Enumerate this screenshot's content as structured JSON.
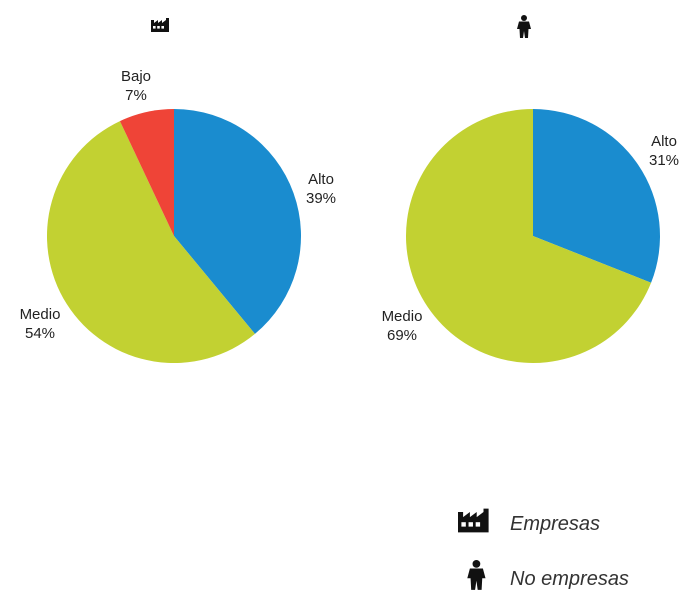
{
  "chart_data": [
    {
      "type": "pie",
      "title_icon": "factory-icon",
      "slices": [
        {
          "label": "Alto",
          "value": 39,
          "value_label": "39%",
          "color": "#1a8ccf"
        },
        {
          "label": "Medio",
          "value": 54,
          "value_label": "54%",
          "color": "#c2d132"
        },
        {
          "label": "Bajo",
          "value": 7,
          "value_label": "7%",
          "color": "#ef4437"
        }
      ]
    },
    {
      "type": "pie",
      "title_icon": "person-icon",
      "slices": [
        {
          "label": "Alto",
          "value": 31,
          "value_label": "31%",
          "color": "#1a8ccf"
        },
        {
          "label": "Medio",
          "value": 69,
          "value_label": "69%",
          "color": "#c2d132"
        }
      ]
    }
  ],
  "legend": [
    {
      "icon": "factory-icon",
      "label": "Empresas"
    },
    {
      "icon": "person-icon",
      "label": "No empresas"
    }
  ]
}
